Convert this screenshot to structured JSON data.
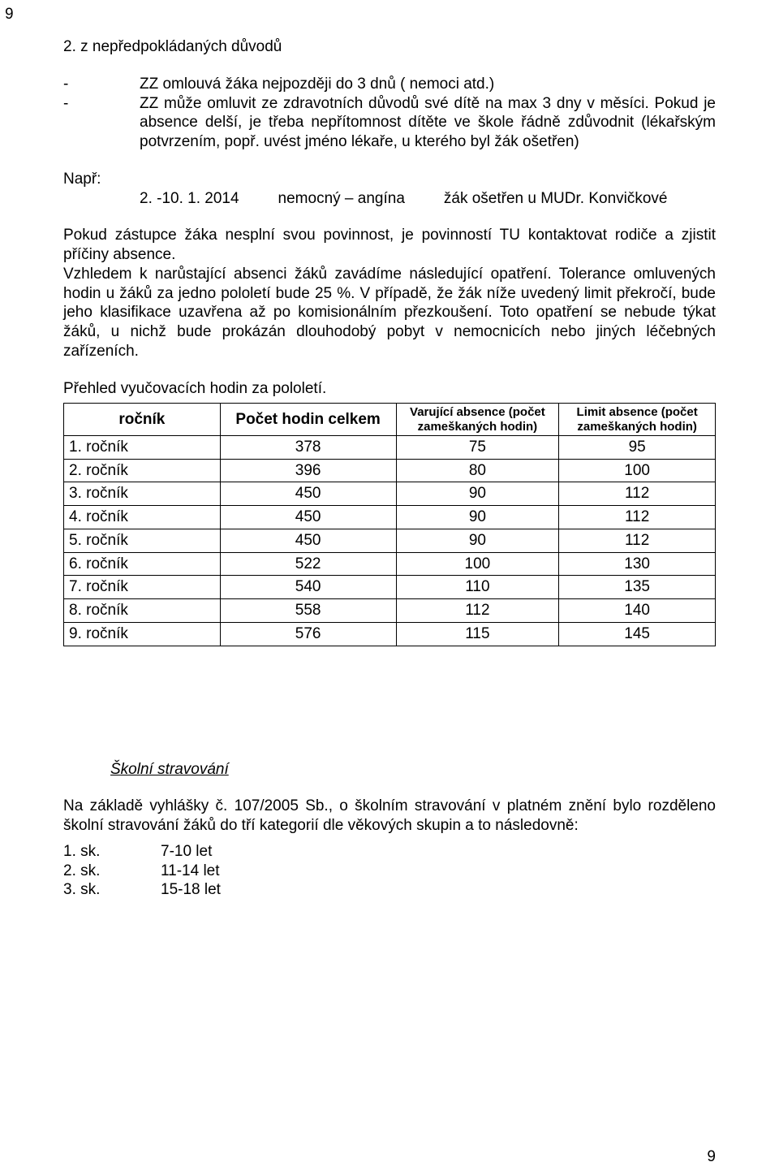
{
  "page_number_top": "9",
  "page_number_bottom": "9",
  "section2": {
    "title": "2. z nepředpokládaných  důvodů",
    "bullets": [
      "ZZ omlouvá žáka nejpozději do 3 dnů ( nemoci atd.)",
      "ZZ může omluvit ze  zdravotních důvodů  své dítě  na max 3 dny v měsíci. Pokud  je absence  delší, je třeba nepřítomnost dítěte  ve škole řádně zdůvodnit (lékařským potvrzením,  popř.  uvést   jméno lékaře, u kterého byl žák ošetřen)"
    ],
    "example_label": "Např:",
    "example_cols": [
      "2. -10. 1. 2014",
      "nemocný – angína",
      "žák ošetřen u MUDr. Konvičkové"
    ],
    "para1": "Pokud zástupce žáka nesplní svou povinnost, je povinností TU kontaktovat rodiče a zjistit příčiny absence.",
    "para2": "Vzhledem k narůstající absenci žáků zavádíme následující opatření. Tolerance omluvených hodin u žáků za  jedno pololetí bude 25 %. V případě, že žák níže uvedený limit překročí, bude jeho klasifikace uzavřena až po komisionálním přezkoušení. Toto opatření se nebude týkat žáků, u nichž bude prokázán dlouhodobý pobyt v nemocnicích nebo jiných léčebných zařízeních.",
    "para3": "Přehled vyučovacích hodin za pololetí."
  },
  "absence_table": {
    "type": "table",
    "columns": [
      "ročník",
      "Počet hodin celkem",
      "Varující absence (počet zameškaných hodin)",
      "Limit absence (počet zameškaných hodin)"
    ],
    "rows": [
      [
        "1. ročník",
        "378",
        "75",
        "95"
      ],
      [
        "2. ročník",
        "396",
        "80",
        "100"
      ],
      [
        "3. ročník",
        "450",
        "90",
        "112"
      ],
      [
        "4. ročník",
        "450",
        "90",
        "112"
      ],
      [
        "5. ročník",
        "450",
        "90",
        "112"
      ],
      [
        "6. ročník",
        "522",
        "100",
        "130"
      ],
      [
        "7. ročník",
        "540",
        "110",
        "135"
      ],
      [
        "8. ročník",
        "558",
        "112",
        "140"
      ],
      [
        "9. ročník",
        "576",
        "115",
        "145"
      ]
    ],
    "border_color": "#000000",
    "header_fontsize_main": 19,
    "header_fontsize_small": 15,
    "cell_fontsize": 19,
    "col_align": [
      "left",
      "center",
      "center",
      "center"
    ]
  },
  "catering": {
    "heading": "Školní stravování",
    "intro": "Na základě vyhlášky č. 107/2005 Sb., o školním stravování  v platném znění bylo rozděleno školní stravování žáků do tří kategorií dle věkových skupin a to následovně:",
    "cats": [
      {
        "left": "1. sk.",
        "right": "7-10 let"
      },
      {
        "left": "2. sk.",
        "right": "11-14 let"
      },
      {
        "left": "3. sk.",
        "right": "15-18 let"
      }
    ]
  }
}
